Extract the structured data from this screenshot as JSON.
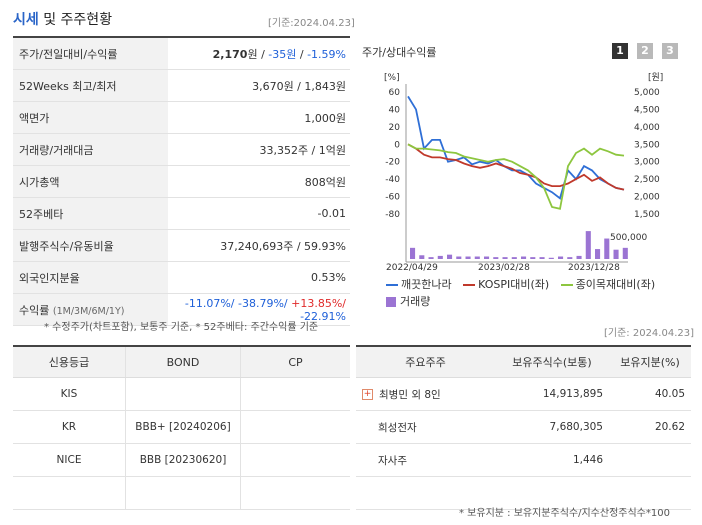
{
  "header": {
    "title_part1": "시세",
    "title_part2": "및 주주현황",
    "date": "[기준:2024.04.23]"
  },
  "price_table": [
    {
      "label": "주가/전일대비/수익률",
      "value_main": "2,170",
      "unit": "원",
      "sep1": " / ",
      "change": "-35원",
      "sep2": " / ",
      "rate": "-1.59%"
    },
    {
      "label": "52Weeks 최고/최저",
      "value": "3,670원 / 1,843원"
    },
    {
      "label": "액면가",
      "value": "1,000원"
    },
    {
      "label": "거래량/거래대금",
      "value": "33,352주 / 1억원"
    },
    {
      "label": "시가총액",
      "value": "808억원"
    },
    {
      "label": "52주베타",
      "value": "-0.01"
    },
    {
      "label": "발행주식수/유동비율",
      "value": "37,240,693주 / 59.93%"
    },
    {
      "label": "외국인지분율",
      "value": "0.53%"
    }
  ],
  "returns": {
    "label": "수익률",
    "label_small": "(1M/3M/6M/1Y)",
    "r1": "-11.07%/",
    "r2": " -38.79%/",
    "r3": " +13.85%/",
    "r4": " -22.91%"
  },
  "note1": "* 수정주가(차트포함), 보통주 기준, * 52주베타: 주간수익률 기준",
  "chart_header": {
    "title": "주가/상대수익률",
    "pages": [
      "1",
      "2",
      "3"
    ],
    "active_color": "#333333",
    "inactive_color": "#b9b9b9"
  },
  "chart_data": {
    "type": "line",
    "left_unit": "[%]",
    "right_unit": "[원]",
    "left_ticks": [
      "60",
      "40",
      "20",
      "0",
      "-20",
      "-40",
      "-60",
      "-80"
    ],
    "right_ticks": [
      "5,000",
      "4,500",
      "4,000",
      "3,500",
      "3,000",
      "2,500",
      "2,000",
      "1,500"
    ],
    "volume_tick": "500,000",
    "x_labels": [
      "2022/04/29",
      "2023/02/28",
      "2023/12/28"
    ],
    "ylim": [
      -80,
      60
    ],
    "series": [
      {
        "name": "깨끗한나라",
        "color": "#2f6fd6",
        "values": [
          55,
          40,
          -5,
          5,
          5,
          -20,
          -18,
          -15,
          -23,
          -20,
          -22,
          -18,
          -25,
          -30,
          -30,
          -35,
          -45,
          -50,
          -55,
          -62,
          -30,
          -40,
          -25,
          -30,
          -40,
          -45,
          -50,
          -52
        ]
      },
      {
        "name": "KOSPI대비(좌)",
        "color": "#c0392b",
        "values": [
          0,
          -5,
          -12,
          -15,
          -15,
          -17,
          -18,
          -22,
          -25,
          -27,
          -25,
          -22,
          -25,
          -28,
          -33,
          -35,
          -38,
          -45,
          -48,
          -48,
          -45,
          -40,
          -35,
          -42,
          -38,
          -45,
          -50,
          -52
        ]
      },
      {
        "name": "종이목재대비(좌)",
        "color": "#8dc63f",
        "values": [
          0,
          -5,
          -5,
          -6,
          -7,
          -9,
          -10,
          -14,
          -16,
          -18,
          -20,
          -18,
          -17,
          -20,
          -25,
          -30,
          -38,
          -50,
          -72,
          -74,
          -25,
          -10,
          -5,
          -12,
          -5,
          -8,
          -12,
          -13
        ]
      }
    ],
    "volume": {
      "name": "거래량",
      "color": "#9b74d3",
      "values": [
        0.18,
        0.06,
        0.03,
        0.05,
        0.07,
        0.04,
        0.04,
        0.04,
        0.04,
        0.03,
        0.03,
        0.03,
        0.04,
        0.03,
        0.03,
        0.02,
        0.04,
        0.03,
        0.05,
        0.45,
        0.16,
        0.33,
        0.15,
        0.18
      ]
    }
  },
  "credit_table": {
    "headers": [
      "신용등급",
      "BOND",
      "CP"
    ],
    "rows": [
      [
        "KIS",
        "",
        ""
      ],
      [
        "KR",
        "BBB+  [20240206]",
        ""
      ],
      [
        "NICE",
        "BBB  [20230620]",
        ""
      ],
      [
        "",
        "",
        ""
      ]
    ]
  },
  "holders": {
    "date": "[기준: 2024.04.23]",
    "headers": [
      "주요주주",
      "보유주식수(보통)",
      "보유지분(%)"
    ],
    "rows": [
      {
        "name": "최병민 외 8인",
        "shares": "14,913,895",
        "pct": "40.05",
        "expand": true
      },
      {
        "name": "희성전자",
        "shares": "7,680,305",
        "pct": "20.62",
        "expand": false
      },
      {
        "name": "자사주",
        "shares": "1,446",
        "pct": "",
        "expand": false
      },
      {
        "name": "",
        "shares": "",
        "pct": "",
        "expand": false
      }
    ],
    "note": "* 보유지분 : 보유지분주식수/지수산정주식수*100"
  }
}
